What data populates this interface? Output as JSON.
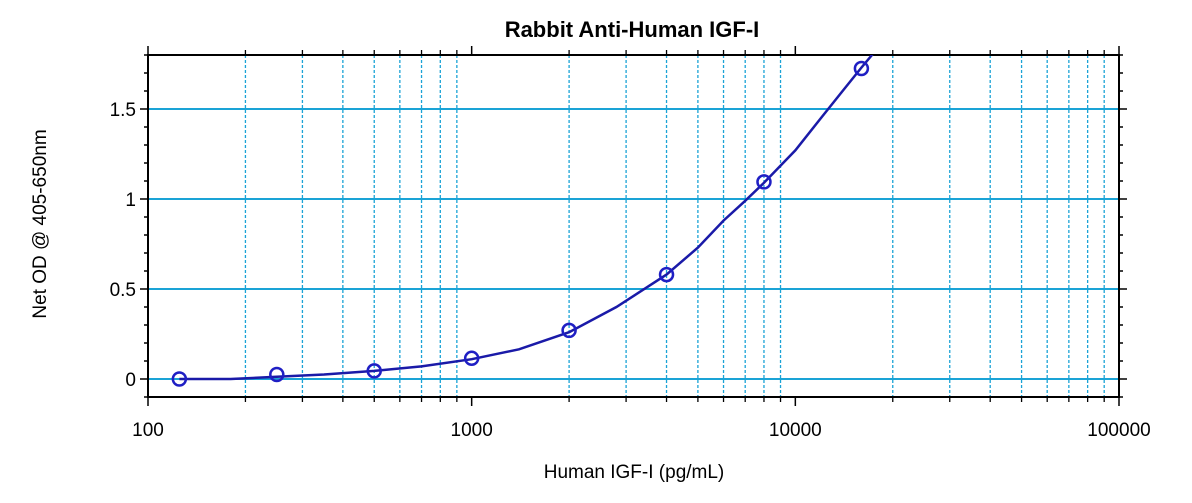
{
  "chart_data": {
    "type": "scatter",
    "title": "Rabbit Anti-Human IGF-I",
    "xlabel": "Human IGF-I (pg/mL)",
    "ylabel": "Net OD @ 405-650nm",
    "x_scale": "log",
    "xlim": [
      100,
      100000
    ],
    "ylim": [
      -0.1,
      1.8
    ],
    "x_ticks": [
      100,
      1000,
      10000,
      100000
    ],
    "x_tick_labels": [
      "100",
      "1000",
      "10000",
      "100000"
    ],
    "y_ticks": [
      0,
      0.5,
      1,
      1.5
    ],
    "y_tick_labels": [
      "0",
      "0.5",
      "1",
      "1.5"
    ],
    "grid": true,
    "colors": {
      "points": "#1f1fc4",
      "curve": "#1a1aa8",
      "major_grid": "#1aa3d6",
      "minor_grid": "#1aa3d6"
    },
    "series": [
      {
        "x": [
          125,
          250,
          500,
          1000,
          2000,
          4000,
          8000,
          16000
        ],
        "y": [
          0.0,
          0.025,
          0.045,
          0.115,
          0.27,
          0.58,
          1.095,
          1.725
        ]
      }
    ],
    "fit_curve": {
      "x": [
        180,
        250,
        350,
        500,
        700,
        1000,
        1400,
        2000,
        2800,
        4000,
        5000,
        6000,
        7000,
        8000,
        10000,
        12000,
        14000,
        16000,
        18000
      ],
      "y": [
        0.0,
        0.012,
        0.025,
        0.045,
        0.07,
        0.11,
        0.165,
        0.26,
        0.4,
        0.58,
        0.73,
        0.88,
        0.99,
        1.09,
        1.27,
        1.45,
        1.6,
        1.73,
        1.84
      ]
    }
  }
}
